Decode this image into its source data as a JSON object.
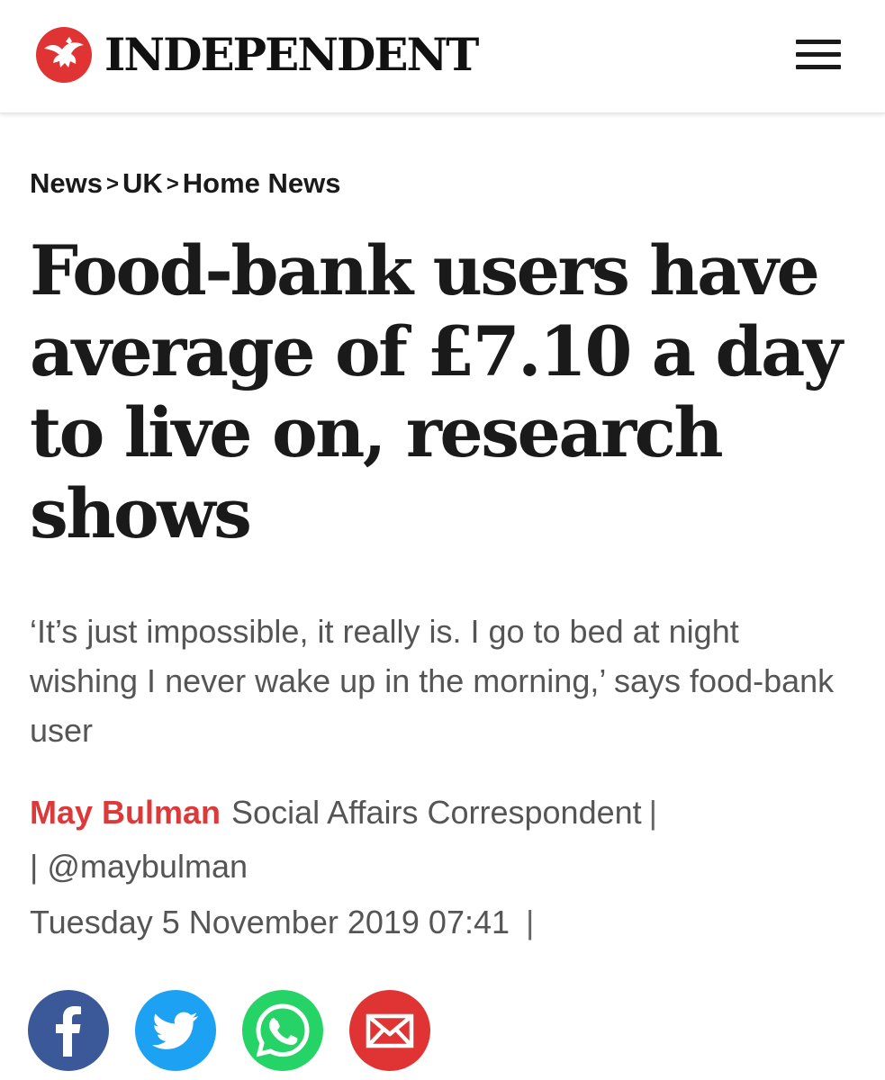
{
  "header": {
    "logo_text": "INDEPENDENT",
    "logo_icon": "eagle-icon",
    "menu_icon": "hamburger-menu-icon"
  },
  "breadcrumb": {
    "items": [
      "News",
      "UK",
      "Home News"
    ],
    "separator": ">"
  },
  "article": {
    "headline": "Food-bank users have average of £7.10 a day to live on, research shows",
    "standfirst": "‘It’s just impossible, it really is. I go to bed at night wishing I never wake up in the morning,’ says food-bank user",
    "author": "May Bulman",
    "author_role": "Social Affairs Correspondent",
    "twitter_handle": "@maybulman",
    "date": "Tuesday 5 November 2019 07:41",
    "pipe": "|"
  },
  "share": {
    "buttons": [
      {
        "icon": "facebook-icon",
        "color": "#3b5998"
      },
      {
        "icon": "twitter-icon",
        "color": "#1da1f2"
      },
      {
        "icon": "whatsapp-icon",
        "color": "#25d366"
      },
      {
        "icon": "email-icon",
        "color": "#e03434"
      }
    ]
  },
  "colors": {
    "brand_red": "#e03434",
    "author_red": "#dc3a3a",
    "text_dark": "#1a1a1a",
    "text_grey": "#555555"
  }
}
